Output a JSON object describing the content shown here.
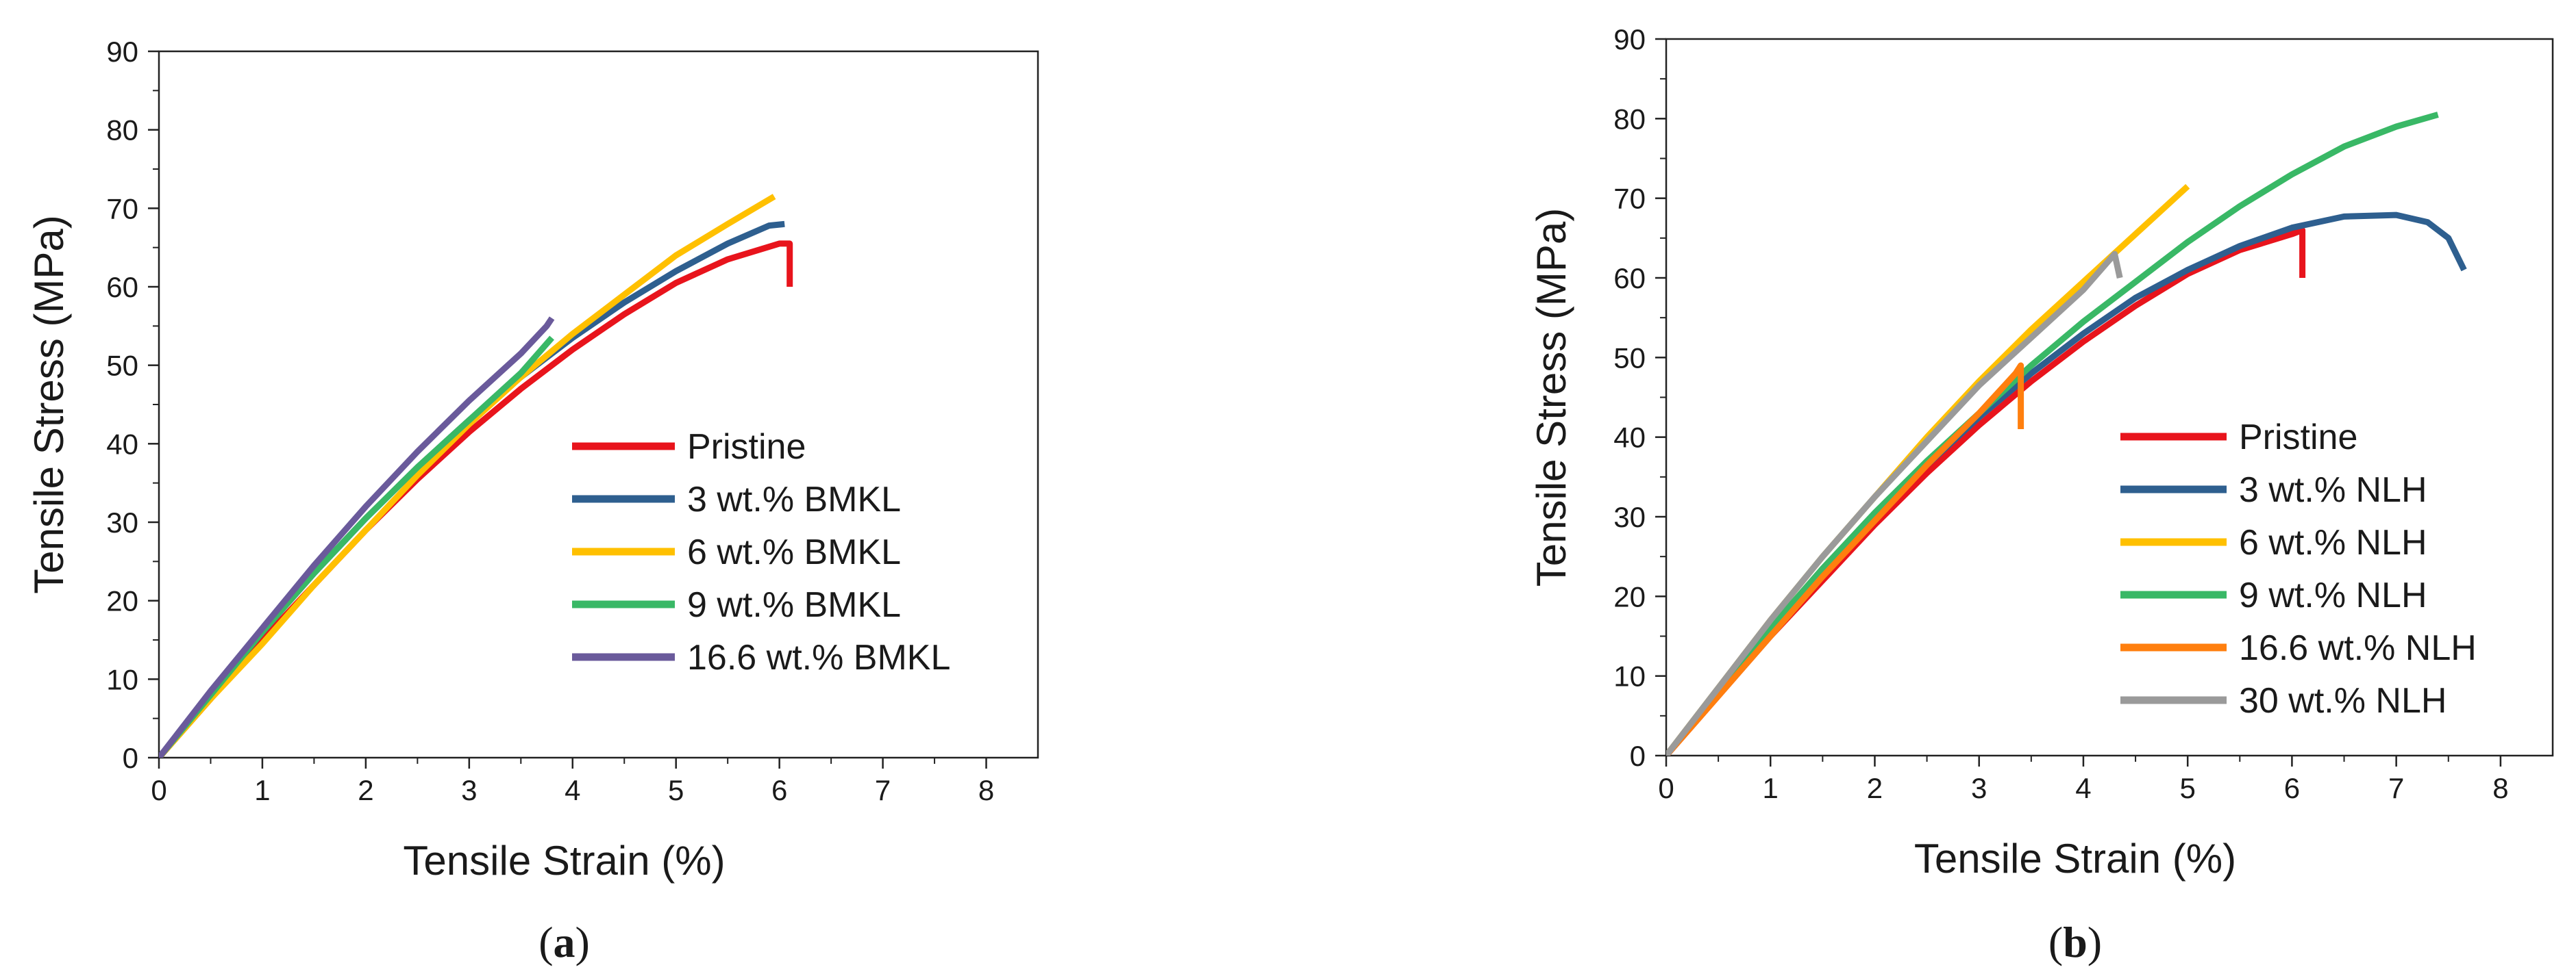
{
  "chart_data": [
    {
      "type": "line",
      "panel_label": {
        "open": "(",
        "letter": "a",
        "close": ")"
      },
      "xlabel": "Tensile Strain (%)",
      "ylabel": "Tensile Stress (MPa)",
      "xlim": [
        0,
        8.5
      ],
      "ylim": [
        0,
        90
      ],
      "xticks": [
        0,
        1,
        2,
        3,
        4,
        5,
        6,
        7,
        8
      ],
      "yticks": [
        0,
        10,
        20,
        30,
        40,
        50,
        60,
        70,
        80,
        90
      ],
      "grid": false,
      "legend_position": "lower-right",
      "series": [
        {
          "name": "Pristine",
          "color": "#e8141c",
          "x": [
            0,
            0.5,
            1,
            1.5,
            2,
            2.5,
            3,
            3.5,
            4,
            4.5,
            5,
            5.5,
            6.0,
            6.1,
            6.1
          ],
          "y": [
            0,
            7.5,
            15,
            22,
            29,
            35.5,
            41.5,
            47,
            52,
            56.5,
            60.5,
            63.5,
            65.5,
            65.5,
            60
          ]
        },
        {
          "name": "3 wt.% BMKL",
          "color": "#2e5f8f",
          "x": [
            0,
            0.5,
            1,
            1.5,
            2,
            2.5,
            3,
            3.5,
            4,
            4.5,
            5,
            5.5,
            5.9,
            6.05
          ],
          "y": [
            0,
            8,
            16,
            23.5,
            30.5,
            37,
            43,
            48.5,
            53.5,
            58,
            62,
            65.5,
            67.8,
            68
          ]
        },
        {
          "name": "6 wt.% BMKL",
          "color": "#ffc000",
          "x": [
            0,
            0.5,
            1,
            1.5,
            2,
            2.5,
            3,
            3.5,
            4,
            4.5,
            5,
            5.5,
            5.95
          ],
          "y": [
            0,
            7.5,
            14.5,
            22,
            29,
            36,
            42.5,
            48.5,
            54,
            59,
            64,
            68,
            71.5
          ]
        },
        {
          "name": "9 wt.% BMKL",
          "color": "#39b866",
          "x": [
            0,
            0.5,
            1,
            1.5,
            2,
            2.5,
            3,
            3.5,
            3.8
          ],
          "y": [
            0,
            8,
            16,
            23.5,
            30.5,
            37,
            43,
            49,
            53.5
          ]
        },
        {
          "name": "16.6 wt.% BMKL",
          "color": "#6a5a9b",
          "x": [
            0,
            0.5,
            1,
            1.5,
            2,
            2.5,
            3,
            3.5,
            3.75,
            3.8
          ],
          "y": [
            0,
            8.5,
            16.5,
            24.5,
            32,
            39,
            45.5,
            51.5,
            55,
            56
          ]
        }
      ]
    },
    {
      "type": "line",
      "panel_label": {
        "open": "(",
        "letter": "b",
        "close": ")"
      },
      "xlabel": "Tensile Strain (%)",
      "ylabel": "Tensile Stress (MPa)",
      "xlim": [
        0,
        8.5
      ],
      "ylim": [
        0,
        90
      ],
      "xticks": [
        0,
        1,
        2,
        3,
        4,
        5,
        6,
        7,
        8
      ],
      "yticks": [
        0,
        10,
        20,
        30,
        40,
        50,
        60,
        70,
        80,
        90
      ],
      "grid": false,
      "legend_position": "lower-right",
      "series": [
        {
          "name": "Pristine",
          "color": "#e8141c",
          "x": [
            0,
            0.5,
            1,
            1.5,
            2,
            2.5,
            3,
            3.5,
            4,
            4.5,
            5,
            5.5,
            6.0,
            6.1,
            6.1
          ],
          "y": [
            0,
            7.5,
            15,
            22,
            29,
            35.5,
            41.5,
            47,
            52,
            56.5,
            60.5,
            63.5,
            65.5,
            66,
            60
          ]
        },
        {
          "name": "3 wt.% NLH",
          "color": "#2e5f8f",
          "x": [
            0,
            0.5,
            1,
            1.5,
            2,
            2.5,
            3,
            3.5,
            4,
            4.5,
            5,
            5.5,
            6,
            6.5,
            7,
            7.3,
            7.5,
            7.65
          ],
          "y": [
            0,
            8,
            15.5,
            23,
            30,
            36.5,
            42.5,
            48,
            53,
            57.5,
            61,
            64,
            66.3,
            67.7,
            67.9,
            67,
            65,
            61
          ]
        },
        {
          "name": "6 wt.% NLH",
          "color": "#ffc000",
          "x": [
            0,
            0.5,
            1,
            1.5,
            2,
            2.5,
            3,
            3.5,
            4,
            4.5,
            5.0
          ],
          "y": [
            0,
            8.5,
            17,
            25,
            32.5,
            40,
            47,
            53.5,
            59.5,
            65.5,
            71.5
          ]
        },
        {
          "name": "9 wt.% NLH",
          "color": "#39b866",
          "x": [
            0,
            0.5,
            1,
            1.5,
            2,
            2.5,
            3,
            3.5,
            4,
            4.5,
            5,
            5.5,
            6,
            6.5,
            7,
            7.4
          ],
          "y": [
            0,
            8,
            16,
            23.5,
            30.5,
            37,
            43,
            49,
            54.5,
            59.5,
            64.5,
            69,
            73,
            76.5,
            79,
            80.5
          ]
        },
        {
          "name": "16.6 wt.% NLH",
          "color": "#ff7f0e",
          "x": [
            0,
            0.5,
            1,
            1.5,
            2,
            2.5,
            3,
            3.35,
            3.4,
            3.4
          ],
          "y": [
            0,
            7.5,
            15,
            22.5,
            29.5,
            36.5,
            43,
            48,
            49,
            41
          ]
        },
        {
          "name": "30 wt.% NLH",
          "color": "#9a9a9a",
          "x": [
            0,
            0.5,
            1,
            1.5,
            2,
            2.5,
            3,
            3.5,
            4,
            4.3,
            4.35
          ],
          "y": [
            0,
            8.5,
            17,
            25,
            32.5,
            39.5,
            46.5,
            52.5,
            58.5,
            63,
            60
          ]
        }
      ]
    }
  ]
}
